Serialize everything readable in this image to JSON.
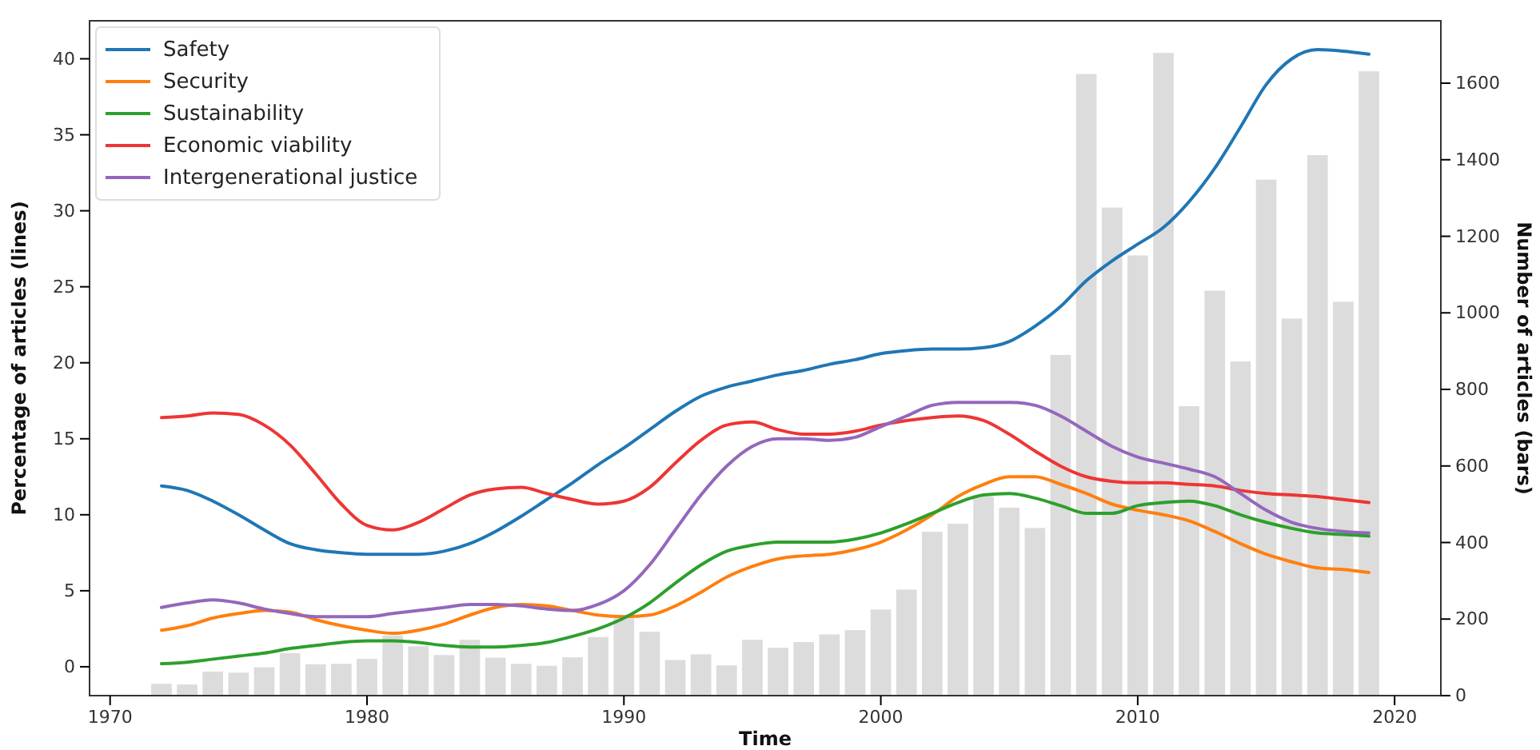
{
  "chart_data": {
    "type": "line",
    "xlabel": "Time",
    "ylabel": "Percentage of articles (lines)",
    "y2label": "Number of articles (bars)",
    "x": [
      1972,
      1973,
      1974,
      1975,
      1976,
      1977,
      1978,
      1979,
      1980,
      1981,
      1982,
      1983,
      1984,
      1985,
      1986,
      1987,
      1988,
      1989,
      1990,
      1991,
      1992,
      1993,
      1994,
      1995,
      1996,
      1997,
      1998,
      1999,
      2000,
      2001,
      2002,
      2003,
      2004,
      2005,
      2006,
      2007,
      2008,
      2009,
      2010,
      2011,
      2012,
      2013,
      2014,
      2015,
      2016,
      2017,
      2018,
      2019
    ],
    "xlim": [
      1969.2,
      2021.8
    ],
    "xticks": [
      1970,
      1980,
      1990,
      2000,
      2010,
      2020
    ],
    "ylim": [
      -1.9,
      42.5
    ],
    "yticks": [
      0,
      5,
      10,
      15,
      20,
      25,
      30,
      35,
      40
    ],
    "y2lim": [
      0,
      1763
    ],
    "y2ticks": [
      0,
      200,
      400,
      600,
      800,
      1000,
      1200,
      1400,
      1600
    ],
    "legend": "top left",
    "grid": false,
    "series": [
      {
        "type": "bar",
        "axis": "y2",
        "color": "#dcdcdc",
        "values": [
          31,
          29,
          63,
          60,
          74,
          111,
          82,
          83,
          96,
          157,
          129,
          106,
          146,
          99,
          83,
          78,
          100,
          153,
          202,
          167,
          93,
          108,
          79,
          146,
          125,
          140,
          160,
          171,
          225,
          277,
          428,
          449,
          520,
          491,
          438,
          890,
          1624,
          1275,
          1150,
          1679,
          756,
          1058,
          873,
          1348,
          985,
          1412,
          1029,
          1631
        ]
      },
      {
        "name": "Safety",
        "color": "#1f77b4",
        "values": [
          11.9,
          11.6,
          10.9,
          10.0,
          9.0,
          8.1,
          7.7,
          7.5,
          7.4,
          7.4,
          7.4,
          7.6,
          8.1,
          8.9,
          9.9,
          11.0,
          12.1,
          13.3,
          14.4,
          15.6,
          16.8,
          17.8,
          18.4,
          18.8,
          19.2,
          19.5,
          19.9,
          20.2,
          20.6,
          20.8,
          20.9,
          20.9,
          21.0,
          21.4,
          22.4,
          23.7,
          25.4,
          26.7,
          27.8,
          28.9,
          30.6,
          32.8,
          35.5,
          38.3,
          40.0,
          40.6,
          40.5,
          40.3
        ]
      },
      {
        "name": "Security",
        "color": "#ff7f0e",
        "values": [
          2.4,
          2.7,
          3.2,
          3.5,
          3.7,
          3.6,
          3.1,
          2.7,
          2.4,
          2.2,
          2.4,
          2.8,
          3.4,
          3.9,
          4.1,
          4.0,
          3.7,
          3.4,
          3.3,
          3.4,
          4.0,
          4.9,
          5.9,
          6.6,
          7.1,
          7.3,
          7.4,
          7.7,
          8.2,
          9.0,
          10.0,
          11.2,
          12.0,
          12.5,
          12.5,
          12.0,
          11.4,
          10.7,
          10.3,
          10.0,
          9.6,
          8.9,
          8.1,
          7.4,
          6.9,
          6.5,
          6.4,
          6.2
        ]
      },
      {
        "name": "Sustainability",
        "color": "#2ca02c",
        "values": [
          0.2,
          0.3,
          0.5,
          0.7,
          0.9,
          1.2,
          1.4,
          1.6,
          1.7,
          1.7,
          1.6,
          1.4,
          1.3,
          1.3,
          1.4,
          1.6,
          2.0,
          2.5,
          3.2,
          4.2,
          5.5,
          6.7,
          7.6,
          8.0,
          8.2,
          8.2,
          8.2,
          8.4,
          8.8,
          9.4,
          10.1,
          10.8,
          11.3,
          11.4,
          11.1,
          10.6,
          10.1,
          10.1,
          10.6,
          10.8,
          10.9,
          10.6,
          10.0,
          9.5,
          9.1,
          8.8,
          8.7,
          8.6
        ]
      },
      {
        "name": "Economic viability",
        "color": "#ee3535",
        "values": [
          16.4,
          16.5,
          16.7,
          16.6,
          15.9,
          14.6,
          12.7,
          10.7,
          9.3,
          9.0,
          9.5,
          10.4,
          11.3,
          11.7,
          11.8,
          11.4,
          11.0,
          10.7,
          10.9,
          11.8,
          13.4,
          14.9,
          15.9,
          16.1,
          15.6,
          15.3,
          15.3,
          15.5,
          15.9,
          16.2,
          16.4,
          16.5,
          16.2,
          15.3,
          14.2,
          13.2,
          12.5,
          12.2,
          12.1,
          12.1,
          12.0,
          11.9,
          11.6,
          11.4,
          11.3,
          11.2,
          11.0,
          10.8
        ]
      },
      {
        "name": "Intergenerational justice",
        "color": "#9467bd",
        "values": [
          3.9,
          4.2,
          4.4,
          4.2,
          3.8,
          3.5,
          3.3,
          3.3,
          3.3,
          3.5,
          3.7,
          3.9,
          4.1,
          4.1,
          4.0,
          3.8,
          3.7,
          4.1,
          5.0,
          6.7,
          9.0,
          11.3,
          13.2,
          14.5,
          15.0,
          15.0,
          14.9,
          15.1,
          15.8,
          16.5,
          17.2,
          17.4,
          17.4,
          17.4,
          17.2,
          16.5,
          15.5,
          14.5,
          13.8,
          13.4,
          13.0,
          12.5,
          11.4,
          10.3,
          9.5,
          9.1,
          8.9,
          8.8
        ]
      }
    ]
  }
}
